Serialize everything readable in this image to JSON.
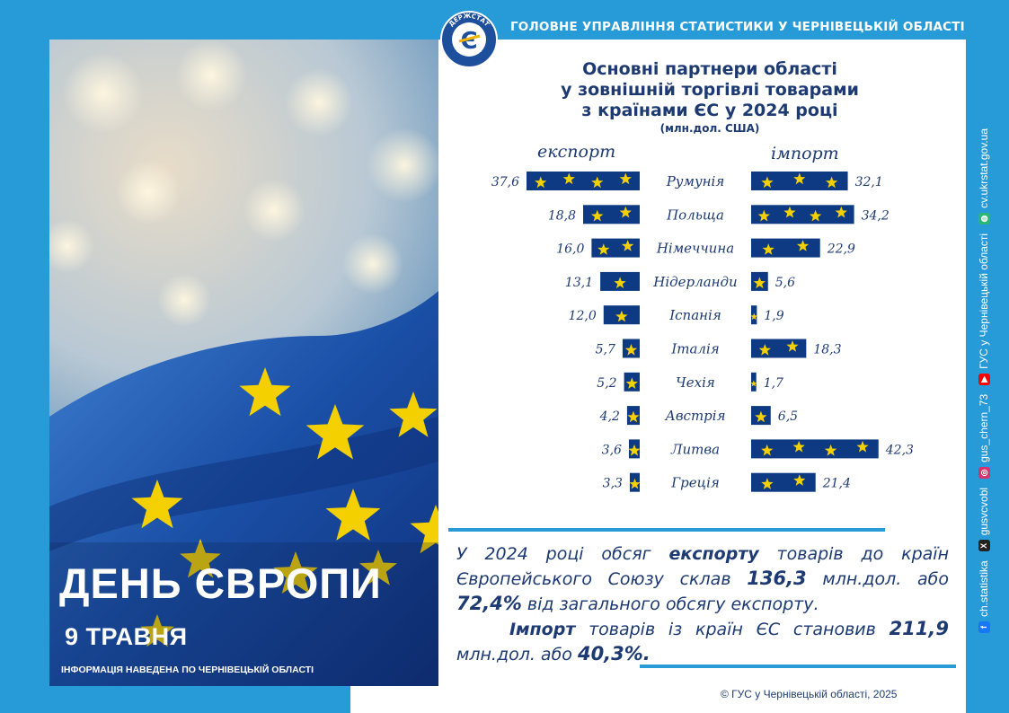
{
  "header": {
    "organization": "ГОЛОВНЕ УПРАВЛІННЯ СТАТИСТИКИ У ЧЕРНІВЕЦЬКІЙ ОБЛАСТІ",
    "logo_text_top": "ДЕРЖСТАТ",
    "logo_text_bottom": "УКРАЇНИ",
    "logo_letter": "Є"
  },
  "poster": {
    "title": "ДЕНЬ ЄВРОПИ",
    "date": "9 ТРАВНЯ",
    "note": "ІНФОРМАЦІЯ НАВЕДЕНА ПО ЧЕРНІВЕЦЬКІЙ ОБЛАСТІ"
  },
  "chart_data": {
    "type": "bar",
    "title_lines": [
      "Основні партнери області",
      "у зовнішній торгівлі товарами",
      "з країнами ЄС у 2024 році"
    ],
    "subtitle": "(млн.дол. США)",
    "categories": [
      "Румунія",
      "Польща",
      "Німеччина",
      "Нідерланди",
      "Іспанія",
      "Італія",
      "Чехія",
      "Австрія",
      "Литва",
      "Греція"
    ],
    "series": [
      {
        "name": "експорт",
        "values": [
          37.6,
          18.8,
          16.0,
          13.1,
          12.0,
          5.7,
          5.2,
          4.2,
          3.6,
          3.3
        ],
        "labels": [
          "37,6",
          "18,8",
          "16,0",
          "13,1",
          "12,0",
          "5,7",
          "5,2",
          "4,2",
          "3,6",
          "3,3"
        ]
      },
      {
        "name": "імпорт",
        "values": [
          32.1,
          34.2,
          22.9,
          5.6,
          1.9,
          18.3,
          1.7,
          6.5,
          42.3,
          21.4
        ],
        "labels": [
          "32,1",
          "34,2",
          "22,9",
          "5,6",
          "1,9",
          "18,3",
          "1,7",
          "6,5",
          "42,3",
          "21,4"
        ]
      }
    ],
    "layout": "butterfly",
    "bar_color": "#0d3a82",
    "star_color": "#f5d000"
  },
  "summary": {
    "line1_a": "У 2024 році обсяг ",
    "line1_b": "експорту",
    "line1_c": " товарів до країн",
    "line2_a": "Європейського Союзу склав ",
    "line2_b": "136,3",
    "line2_c": " млн.дол.",
    "line3_a": "або ",
    "line3_b": "72,4%",
    "line3_c": " від загального обсягу експорту.",
    "line4_a": "Імпорт",
    "line4_b": " товарів із країн ЄС становив",
    "line5_a": "211,9",
    "line5_b": " млн.дол. або ",
    "line5_c": "40,3%."
  },
  "footer": {
    "copyright": "© ГУС у Чернівецькій області, 2025"
  },
  "sidebar": {
    "items": [
      {
        "icon": "facebook-icon",
        "text": "ch.statistika",
        "color": "#1877f2",
        "glyph": "f"
      },
      {
        "icon": "x-icon",
        "text": "gusvcvobl",
        "color": "#222222",
        "glyph": "X"
      },
      {
        "icon": "instagram-icon",
        "text": "gus_chern_73",
        "color": "#d6336c",
        "glyph": "◎"
      },
      {
        "icon": "youtube-icon",
        "text": "ГУС у Чернівецькій області",
        "color": "#ff0000",
        "glyph": "▶"
      },
      {
        "icon": "globe-icon",
        "text": "cv.ukrstat.gov.ua",
        "color": "#2bb673",
        "glyph": "◍"
      }
    ]
  },
  "colors": {
    "brand_blue": "#279ad8",
    "navy": "#1d3a73",
    "bar": "#0d3a82",
    "star": "#f5d000"
  }
}
